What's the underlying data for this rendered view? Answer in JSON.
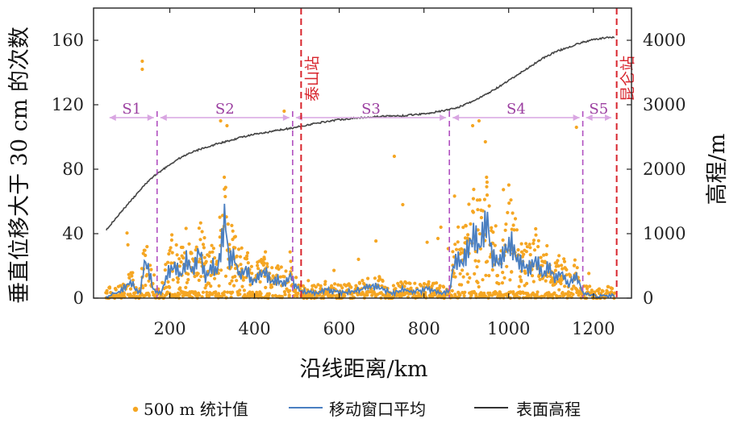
{
  "chart_data": {
    "type": "scatter+line",
    "xlabel": "沿线距离/km",
    "ylabel_left": "垂直位移大于 30 cm 的次数",
    "ylabel_right": "高程/m",
    "xlim": [
      20,
      1290
    ],
    "ylim_left": [
      0,
      180
    ],
    "ylim_right": [
      0,
      4500
    ],
    "x_ticks": [
      200,
      400,
      600,
      800,
      1000,
      1200
    ],
    "y_left_ticks": [
      0,
      40,
      80,
      120,
      160
    ],
    "y_right_ticks": [
      0,
      1000,
      2000,
      3000,
      4000
    ],
    "segments": [
      {
        "label": "S1",
        "start": 50,
        "end": 170
      },
      {
        "label": "S2",
        "start": 170,
        "end": 490
      },
      {
        "label": "S3",
        "start": 490,
        "end": 860
      },
      {
        "label": "S4",
        "start": 860,
        "end": 1175
      },
      {
        "label": "S5",
        "start": 1175,
        "end": 1250
      }
    ],
    "segment_y": 112,
    "boundaries": [
      170,
      490,
      860,
      1175
    ],
    "stations": [
      {
        "label": "泰山站",
        "x": 510
      },
      {
        "label": "昆仑站",
        "x": 1255
      }
    ],
    "elevation": {
      "name": "表面高程",
      "x": [
        50,
        80,
        100,
        120,
        140,
        160,
        180,
        200,
        220,
        250,
        280,
        310,
        340,
        370,
        400,
        430,
        460,
        490,
        520,
        560,
        600,
        650,
        700,
        750,
        800,
        850,
        880,
        900,
        930,
        960,
        990,
        1020,
        1050,
        1080,
        1110,
        1140,
        1170,
        1200,
        1230,
        1250
      ],
      "y": [
        1060,
        1300,
        1450,
        1600,
        1750,
        1880,
        1980,
        2070,
        2160,
        2260,
        2330,
        2390,
        2440,
        2500,
        2540,
        2570,
        2610,
        2640,
        2680,
        2730,
        2770,
        2800,
        2820,
        2830,
        2860,
        2910,
        2960,
        3010,
        3100,
        3210,
        3330,
        3460,
        3590,
        3720,
        3820,
        3890,
        3960,
        4010,
        4040,
        4050
      ]
    },
    "scatter_legend": "500 m 统计值",
    "moving_avg_legend": "移动窗口平均",
    "elevation_legend": "表面高程",
    "scatter_outliers": [
      {
        "x": 135,
        "y": 147
      },
      {
        "x": 135,
        "y": 142
      },
      {
        "x": 470,
        "y": 116
      },
      {
        "x": 320,
        "y": 110
      },
      {
        "x": 335,
        "y": 107
      },
      {
        "x": 915,
        "y": 107
      },
      {
        "x": 930,
        "y": 110
      },
      {
        "x": 945,
        "y": 97
      },
      {
        "x": 1160,
        "y": 106
      },
      {
        "x": 730,
        "y": 88
      },
      {
        "x": 750,
        "y": 58
      },
      {
        "x": 840,
        "y": 44
      }
    ],
    "moving_average": {
      "x": [
        50,
        70,
        90,
        110,
        120,
        130,
        140,
        150,
        160,
        170,
        180,
        195,
        210,
        225,
        240,
        255,
        270,
        285,
        300,
        310,
        320,
        330,
        340,
        350,
        365,
        380,
        395,
        410,
        425,
        440,
        455,
        470,
        485,
        495,
        510,
        540,
        570,
        600,
        630,
        660,
        690,
        720,
        750,
        780,
        810,
        840,
        860,
        870,
        880,
        890,
        900,
        910,
        920,
        930,
        940,
        950,
        960,
        975,
        990,
        1005,
        1020,
        1035,
        1050,
        1065,
        1080,
        1095,
        1110,
        1125,
        1140,
        1160,
        1175,
        1190,
        1210,
        1230,
        1250
      ],
      "y": [
        1,
        3,
        6,
        10,
        5,
        3,
        22,
        18,
        6,
        4,
        3,
        15,
        20,
        14,
        24,
        16,
        30,
        12,
        20,
        16,
        28,
        52,
        22,
        26,
        14,
        18,
        10,
        14,
        16,
        10,
        12,
        9,
        14,
        8,
        4,
        3,
        5,
        3,
        4,
        6,
        8,
        3,
        5,
        4,
        6,
        3,
        4,
        20,
        24,
        22,
        28,
        34,
        40,
        30,
        42,
        48,
        26,
        22,
        28,
        35,
        24,
        20,
        18,
        24,
        14,
        20,
        12,
        16,
        8,
        14,
        3,
        2,
        1,
        2,
        1
      ]
    },
    "axis_color_left": "#222222",
    "scatter_color": "#f5a623",
    "moving_avg_color": "#4a7fc1",
    "elevation_color": "#444444",
    "boundary_color": "#b04fc0",
    "station_color": "#d8242c"
  }
}
